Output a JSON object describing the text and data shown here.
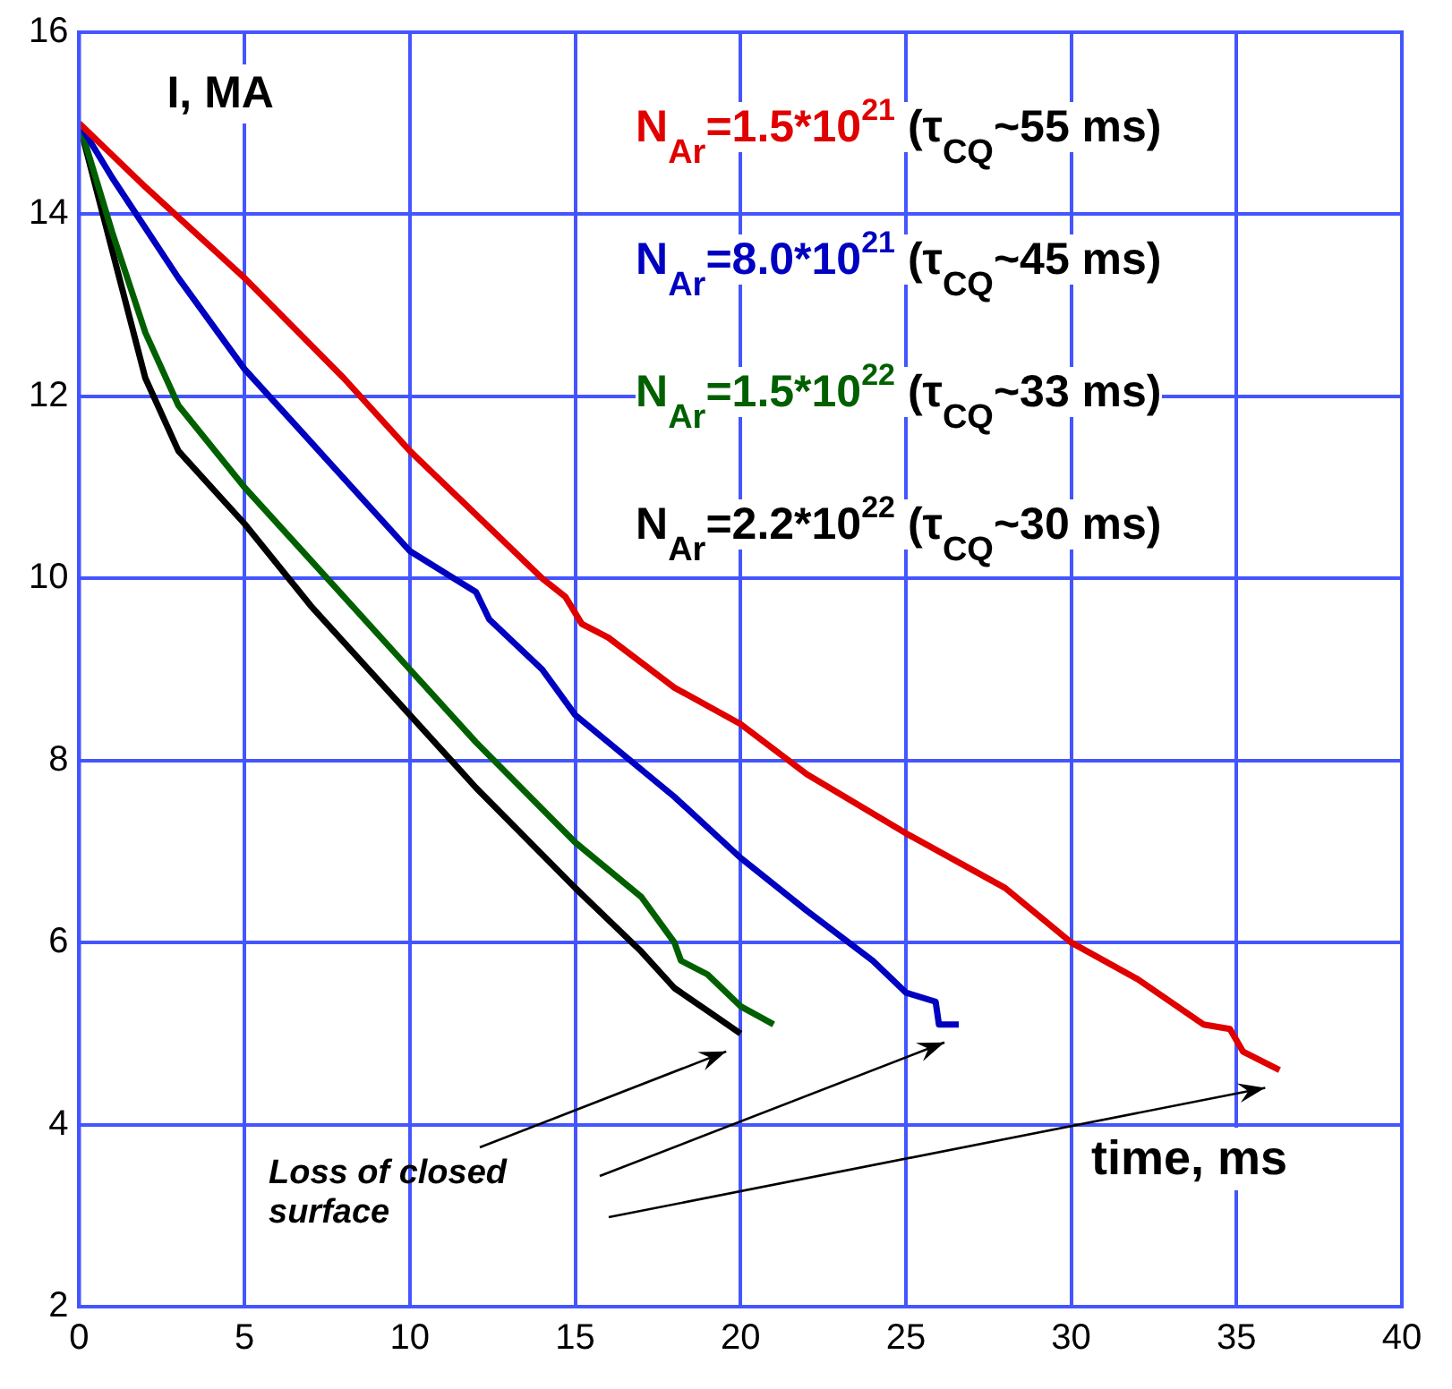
{
  "chart_data": {
    "type": "line",
    "xlabel": "time, ms",
    "ylabel": "I, MA",
    "xlim": [
      0,
      40
    ],
    "xticks": [
      0,
      5,
      10,
      15,
      20,
      25,
      30,
      35,
      40
    ],
    "ylim": [
      2,
      16
    ],
    "yticks": [
      2,
      4,
      6,
      8,
      10,
      12,
      14,
      16
    ],
    "grid": true,
    "legend": "top right",
    "marker": "none",
    "line_style": "solid",
    "annotations": [
      "Loss of closed surface"
    ],
    "series": [
      {
        "name": "N$_{Ar}$=1.5*10$^{21}$ (τ$_{CQ}$~55 ms)",
        "color": "#e00000",
        "x": [
          0,
          2,
          5,
          8,
          10,
          12,
          14,
          14.7,
          15.2,
          16,
          18,
          20,
          22,
          25,
          28,
          30,
          32,
          34,
          34.8,
          35.2,
          36.3
        ],
        "values": [
          15,
          14.3,
          13.3,
          12.2,
          11.4,
          10.7,
          10.0,
          9.8,
          9.5,
          9.35,
          8.8,
          8.4,
          7.85,
          7.2,
          6.6,
          6.0,
          5.6,
          5.1,
          5.05,
          4.8,
          4.6
        ]
      },
      {
        "name": "N$_{Ar}$=8.0*10$^{21}$ (τ$_{CQ}$~45 ms)",
        "color": "#0000c0",
        "x": [
          0,
          1,
          3,
          5,
          7,
          10,
          12,
          12.4,
          14,
          15,
          18,
          20,
          22,
          24,
          25,
          25.9,
          26.0,
          26.6
        ],
        "values": [
          15,
          14.4,
          13.3,
          12.3,
          11.5,
          10.3,
          9.85,
          9.55,
          9.0,
          8.5,
          7.6,
          6.93,
          6.35,
          5.8,
          5.45,
          5.35,
          5.1,
          5.1
        ]
      },
      {
        "name": "N$_{Ar}$=1.5*10$^{22}$ (τ$_{CQ}$~33 ms)",
        "color": "#006000",
        "x": [
          0,
          1,
          2,
          3,
          5,
          7,
          10,
          12,
          15,
          17,
          18,
          18.2,
          19,
          20,
          21
        ],
        "values": [
          15,
          13.8,
          12.7,
          11.9,
          11.0,
          10.2,
          9.0,
          8.2,
          7.1,
          6.5,
          6.0,
          5.8,
          5.65,
          5.3,
          5.1
        ]
      },
      {
        "name": "N$_{Ar}$=2.2*10$^{22}$ (τ$_{CQ}$~30 ms)",
        "color": "#000000",
        "x": [
          0,
          1,
          2,
          3,
          5,
          7,
          10,
          12,
          15,
          17,
          18,
          19,
          20
        ],
        "values": [
          15,
          13.6,
          12.2,
          11.4,
          10.6,
          9.7,
          8.5,
          7.7,
          6.6,
          5.9,
          5.5,
          5.25,
          5.0
        ]
      }
    ]
  }
}
